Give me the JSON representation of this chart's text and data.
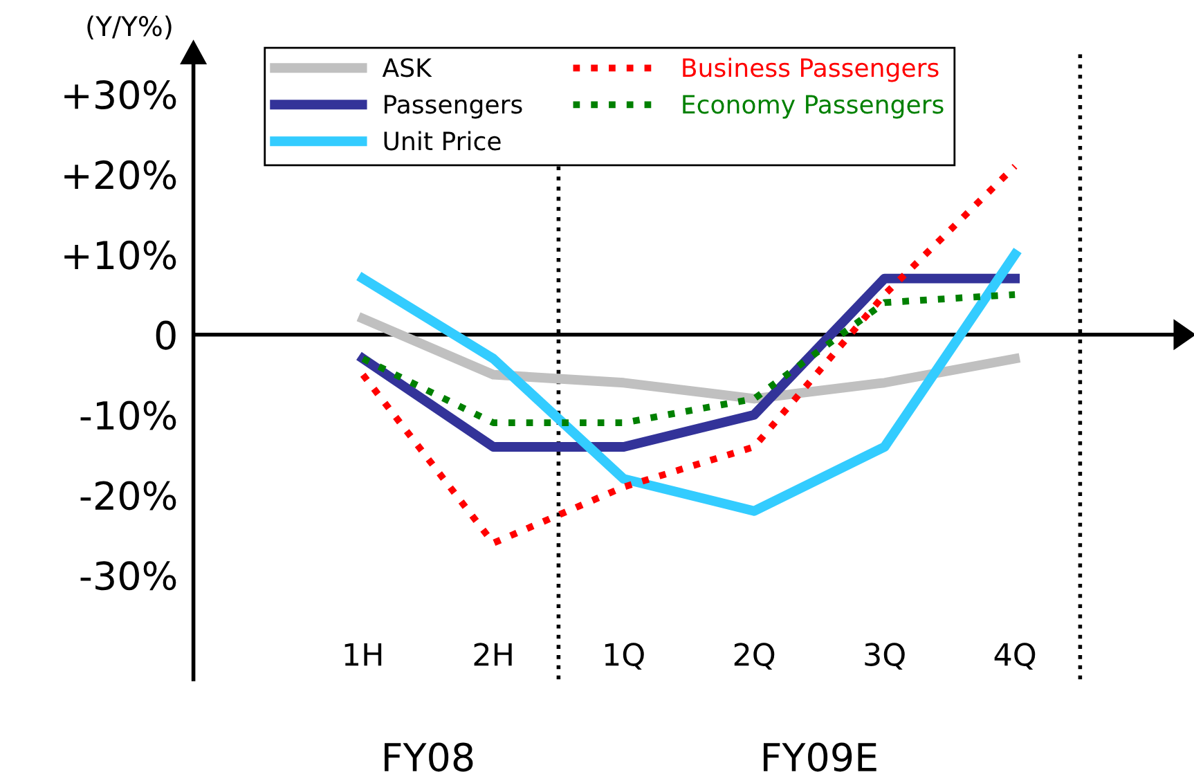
{
  "chart_data": {
    "type": "line",
    "ylabel": "(Y/Y%)",
    "categories": [
      "1H",
      "2H",
      "1Q",
      "2Q",
      "3Q",
      "4Q"
    ],
    "ylim": [
      -43,
      35
    ],
    "yticks": [
      {
        "value": 30,
        "label": "+30%"
      },
      {
        "value": 20,
        "label": "+20%"
      },
      {
        "value": 10,
        "label": "+10%"
      },
      {
        "value": 0,
        "label": "0"
      },
      {
        "value": -10,
        "label": "-10%"
      },
      {
        "value": -20,
        "label": "-20%"
      },
      {
        "value": -30,
        "label": "-30%"
      }
    ],
    "series": [
      {
        "name": "ASK",
        "color": "#c0c0c0",
        "line_style": "solid",
        "values": [
          2,
          -5,
          -6,
          -8,
          -6,
          -3
        ]
      },
      {
        "name": "Passengers",
        "color": "#333399",
        "line_style": "solid",
        "values": [
          -3,
          -14,
          -14,
          -10,
          7,
          7
        ]
      },
      {
        "name": "Unit Price",
        "color": "#33ccff",
        "line_style": "solid",
        "values": [
          7,
          -3,
          -18,
          -22,
          -14,
          10
        ]
      },
      {
        "name": "Business Passengers",
        "color": "#ff0000",
        "line_style": "dotted",
        "values": [
          -5,
          -26,
          -19,
          -14,
          5,
          21
        ]
      },
      {
        "name": "Economy Passengers",
        "color": "#008000",
        "line_style": "dotted",
        "values": [
          -3,
          -11,
          -11,
          -8,
          4,
          5
        ]
      }
    ],
    "ref_lines": [
      {
        "axis": "y",
        "value": 0,
        "color": "#000000",
        "line_style": "solid"
      }
    ],
    "annotations": [
      "FY08",
      "FY09E"
    ],
    "marker": "none",
    "legend": "top"
  }
}
